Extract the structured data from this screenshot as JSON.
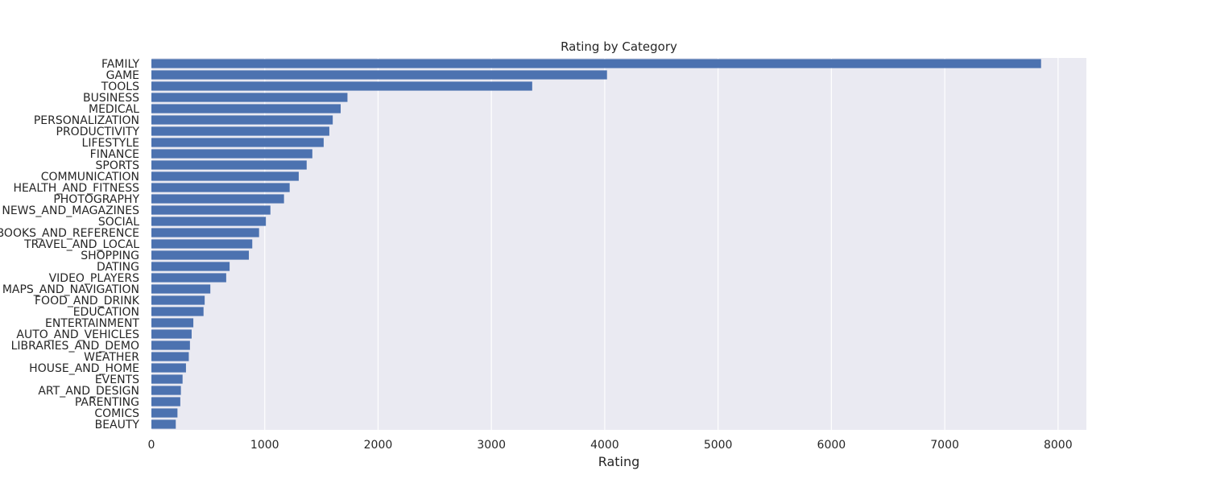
{
  "chart_data": {
    "type": "bar",
    "orientation": "horizontal",
    "title": "Rating by Category",
    "xlabel": "Rating",
    "ylabel": "",
    "xlim": [
      0,
      8250
    ],
    "xticks": [
      0,
      1000,
      2000,
      3000,
      4000,
      5000,
      6000,
      7000,
      8000
    ],
    "grid": true,
    "bar_color": "#4c72b0",
    "background_color": "#eaeaf2",
    "categories": [
      "FAMILY",
      "GAME",
      "TOOLS",
      "BUSINESS",
      "MEDICAL",
      "PERSONALIZATION",
      "PRODUCTIVITY",
      "LIFESTYLE",
      "FINANCE",
      "SPORTS",
      "COMMUNICATION",
      "HEALTH_AND_FITNESS",
      "PHOTOGRAPHY",
      "NEWS_AND_MAGAZINES",
      "SOCIAL",
      "BOOKS_AND_REFERENCE",
      "TRAVEL_AND_LOCAL",
      "SHOPPING",
      "DATING",
      "VIDEO_PLAYERS",
      "MAPS_AND_NAVIGATION",
      "FOOD_AND_DRINK",
      "EDUCATION",
      "ENTERTAINMENT",
      "AUTO_AND_VEHICLES",
      "LIBRARIES_AND_DEMO",
      "WEATHER",
      "HOUSE_AND_HOME",
      "EVENTS",
      "ART_AND_DESIGN",
      "PARENTING",
      "COMICS",
      "BEAUTY"
    ],
    "values": [
      7850,
      4020,
      3360,
      1730,
      1670,
      1600,
      1570,
      1520,
      1420,
      1370,
      1300,
      1220,
      1170,
      1050,
      1010,
      950,
      890,
      860,
      690,
      660,
      520,
      470,
      460,
      370,
      355,
      340,
      330,
      305,
      275,
      260,
      255,
      230,
      215
    ]
  }
}
